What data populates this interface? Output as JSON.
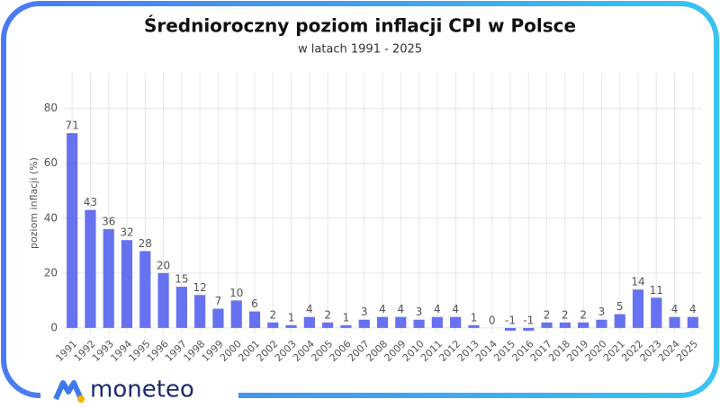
{
  "chart_data": {
    "type": "bar",
    "title": "Średnioroczny poziom inflacji CPI w Polsce",
    "subtitle": "w latach 1991 - 2025",
    "y_label": "poziom inflacji (%)",
    "categories": [
      "1991",
      "1992",
      "1993",
      "1994",
      "1995",
      "1996",
      "1997",
      "1998",
      "1999",
      "2000",
      "2001",
      "2002",
      "2003",
      "2004",
      "2005",
      "2006",
      "2007",
      "2008",
      "2009",
      "2010",
      "2011",
      "2012",
      "2013",
      "2014",
      "2015",
      "2016",
      "2017",
      "2018",
      "2019",
      "2020",
      "2021",
      "2022",
      "2023",
      "2024",
      "2025"
    ],
    "values": [
      71,
      43,
      36,
      32,
      28,
      20,
      15,
      12,
      7,
      10,
      6,
      2,
      1,
      4,
      2,
      1,
      3,
      4,
      4,
      3,
      4,
      4,
      1,
      0,
      -1,
      -1,
      2,
      2,
      2,
      3,
      5,
      14,
      11,
      4,
      4
    ],
    "color": "#6672f0",
    "ylim": [
      -2,
      93
    ],
    "yticks": [
      0,
      20,
      40,
      60,
      80
    ],
    "grid": true
  },
  "logo": "moneteo"
}
